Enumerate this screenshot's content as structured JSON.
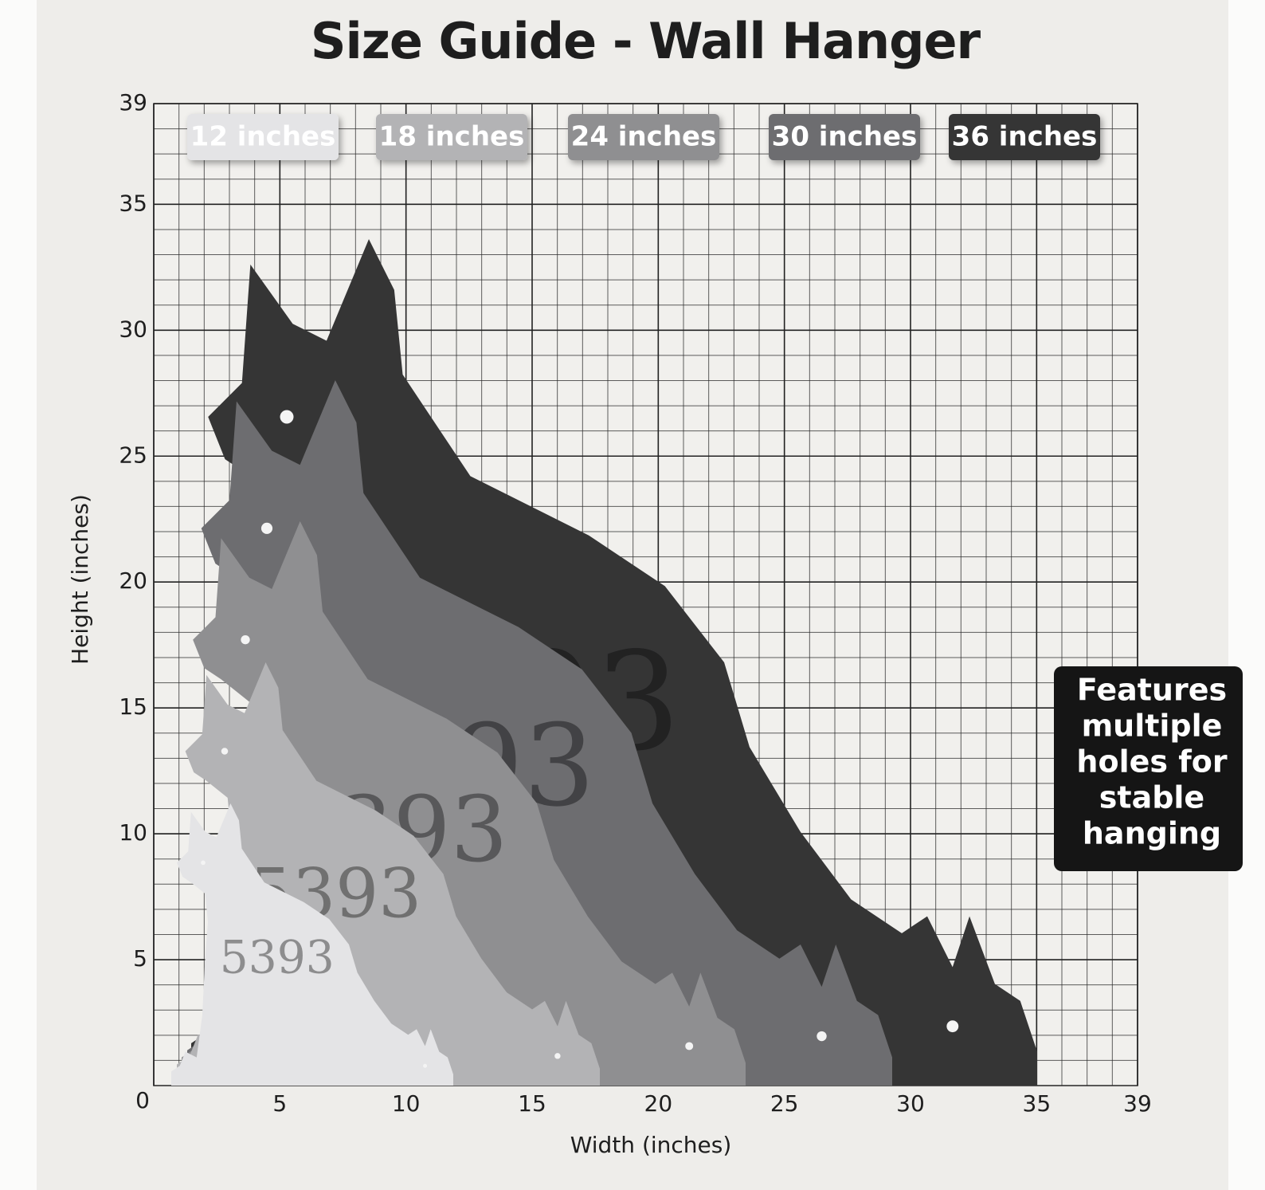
{
  "title": "Size Guide - Wall Hanger",
  "x_axis": {
    "label": "Width (inches)",
    "range": [
      0,
      39
    ],
    "ticks": [
      0,
      5,
      10,
      15,
      20,
      25,
      30,
      35,
      39
    ]
  },
  "y_axis": {
    "label": "Height (inches)",
    "range": [
      0,
      39
    ],
    "ticks": [
      5,
      10,
      15,
      20,
      25,
      30,
      35,
      39
    ]
  },
  "sizes": [
    {
      "label": "12 inches",
      "inches": 12,
      "color": "#e4e4e6"
    },
    {
      "label": "18 inches",
      "inches": 18,
      "color": "#b3b3b5"
    },
    {
      "label": "24 inches",
      "inches": 24,
      "color": "#8f8f91"
    },
    {
      "label": "30 inches",
      "inches": 30,
      "color": "#6d6d6f"
    },
    {
      "label": "36 inches",
      "inches": 36,
      "color": "#343436"
    }
  ],
  "house_number": "5393",
  "note": [
    "Features",
    "multiple",
    "holes for",
    "stable",
    "hanging"
  ]
}
